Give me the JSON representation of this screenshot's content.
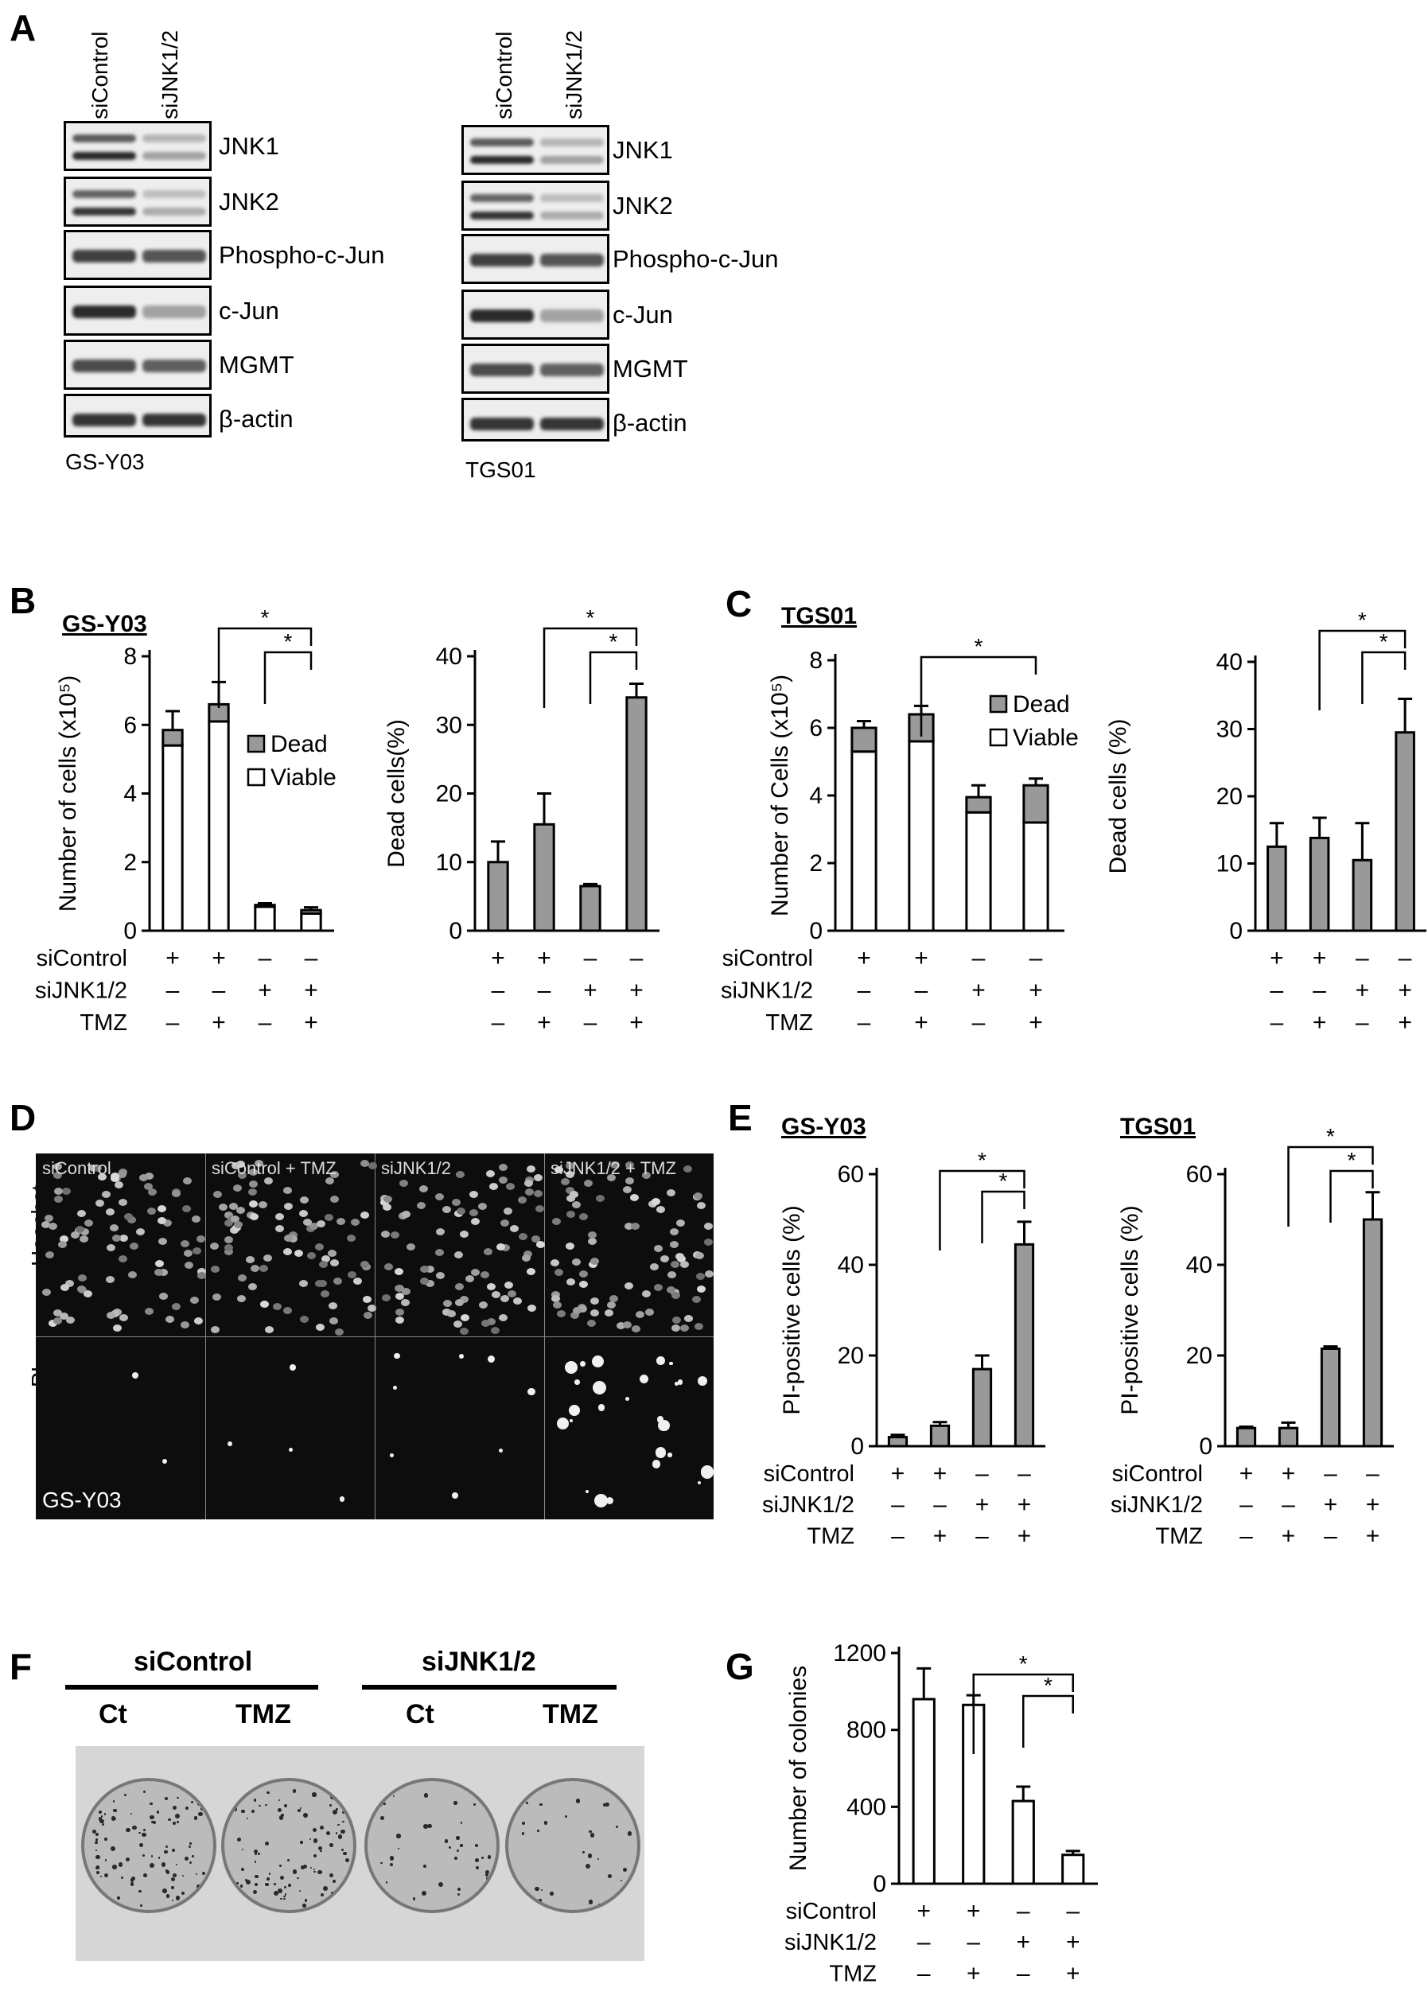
{
  "panels": {
    "A": "A",
    "B": "B",
    "C": "C",
    "D": "D",
    "E": "E",
    "F": "F",
    "G": "G"
  },
  "panelA": {
    "lanes": [
      "siControl",
      "siJNK1/2"
    ],
    "bands": [
      "JNK1",
      "JNK2",
      "Phospho-c-Jun",
      "c-Jun",
      "MGMT",
      "β-actin"
    ],
    "left_cell": "GS-Y03",
    "right_cell": "TGS01"
  },
  "treatment_rows": [
    "siControl",
    "siJNK1/2",
    "TMZ"
  ],
  "treatment_signs": {
    "siControl": [
      "+",
      "+",
      "–",
      "–"
    ],
    "siJNK1/2": [
      "–",
      "–",
      "+",
      "+"
    ],
    "TMZ": [
      "–",
      "+",
      "–",
      "+"
    ]
  },
  "titles": {
    "B": "GS-Y03",
    "C": "TGS01",
    "E_left": "GS-Y03",
    "E_right": "TGS01"
  },
  "legend": {
    "dead": "Dead",
    "viable": "Viable"
  },
  "significance": "*",
  "panelD": {
    "conditions": [
      "siControl",
      "siControl + TMZ",
      "siJNK1/2",
      "siJNK1/2 + TMZ"
    ],
    "rows": [
      "Hoechst",
      "PI"
    ],
    "cell": "GS-Y03"
  },
  "panelF": {
    "groups": [
      "siControl",
      "siJNK1/2"
    ],
    "sub": [
      "Ct",
      "TMZ",
      "Ct",
      "TMZ"
    ]
  },
  "chart_data": [
    {
      "id": "B1",
      "type": "bar",
      "stacked": true,
      "ylabel": "Number of cells (x10⁵)",
      "ylim": [
        0,
        8
      ],
      "yticks": [
        0,
        2,
        4,
        6,
        8
      ],
      "series": [
        {
          "name": "Viable",
          "values": [
            5.4,
            6.1,
            0.7,
            0.5
          ],
          "color": "#ffffff"
        },
        {
          "name": "Dead",
          "values": [
            0.45,
            0.5,
            0.05,
            0.1
          ],
          "color": "#999999"
        }
      ],
      "errors": [
        0.55,
        0.65,
        0.05,
        0.08
      ]
    },
    {
      "id": "B2",
      "type": "bar",
      "ylabel": "Dead cells(%)",
      "ylim": [
        0,
        40
      ],
      "yticks": [
        0,
        10,
        20,
        30,
        40
      ],
      "values": [
        10,
        15.5,
        6.5,
        34
      ],
      "errors": [
        3,
        4.5,
        0.3,
        2
      ],
      "color": "#999999"
    },
    {
      "id": "C1",
      "type": "bar",
      "stacked": true,
      "ylabel": "Number of Cells (x10⁵)",
      "ylim": [
        0,
        8
      ],
      "yticks": [
        0,
        2,
        4,
        6,
        8
      ],
      "series": [
        {
          "name": "Viable",
          "values": [
            5.3,
            5.6,
            3.5,
            3.2
          ],
          "color": "#ffffff"
        },
        {
          "name": "Dead",
          "values": [
            0.7,
            0.8,
            0.45,
            1.1
          ],
          "color": "#999999"
        }
      ],
      "errors": [
        0.2,
        0.25,
        0.35,
        0.2
      ]
    },
    {
      "id": "C2",
      "type": "bar",
      "ylabel": "Dead cells (%)",
      "ylim": [
        0,
        40
      ],
      "yticks": [
        0,
        10,
        20,
        30,
        40
      ],
      "values": [
        12.5,
        13.8,
        10.5,
        29.5
      ],
      "errors": [
        3.5,
        3,
        5.5,
        5
      ],
      "color": "#999999"
    },
    {
      "id": "E1",
      "type": "bar",
      "ylabel": "PI-positive cells (%)",
      "ylim": [
        0,
        60
      ],
      "yticks": [
        0,
        20,
        40,
        60
      ],
      "values": [
        2,
        4.5,
        17,
        44.5
      ],
      "errors": [
        0.5,
        0.8,
        3,
        5
      ],
      "color": "#999999"
    },
    {
      "id": "E2",
      "type": "bar",
      "ylabel": "PI-positive cells (%)",
      "ylim": [
        0,
        60
      ],
      "yticks": [
        0,
        20,
        40,
        60
      ],
      "values": [
        4,
        4,
        21.5,
        50
      ],
      "errors": [
        0.3,
        1.2,
        0.5,
        6
      ],
      "color": "#999999"
    },
    {
      "id": "G",
      "type": "bar",
      "ylabel": "Number of colonies",
      "ylim": [
        0,
        1200
      ],
      "yticks": [
        0,
        400,
        800,
        1200
      ],
      "values": [
        960,
        930,
        430,
        150
      ],
      "errors": [
        160,
        50,
        75,
        20
      ],
      "color": "#ffffff"
    }
  ]
}
